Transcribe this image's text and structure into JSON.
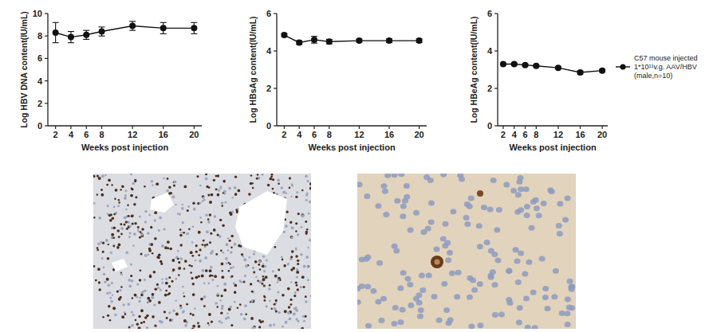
{
  "chart_data": [
    {
      "type": "line",
      "x_label": "Weeks post injection",
      "y_label": "Log HBV DNA content(IU/mL)",
      "x": [
        2,
        4,
        6,
        8,
        12,
        16,
        20
      ],
      "xlim": [
        1,
        21
      ],
      "xticks": [
        2,
        4,
        6,
        8,
        12,
        16,
        20
      ],
      "ylim": [
        0,
        10
      ],
      "yticks": [
        0,
        2,
        4,
        6,
        8,
        10
      ],
      "grid": false,
      "series": [
        {
          "color": "#111111",
          "marker": "circle",
          "line_style": "solid",
          "values": [
            8.3,
            7.9,
            8.1,
            8.4,
            8.9,
            8.7,
            8.7
          ],
          "errors": [
            0.9,
            0.5,
            0.4,
            0.4,
            0.4,
            0.5,
            0.5
          ]
        }
      ]
    },
    {
      "type": "line",
      "x_label": "Weeks post injection",
      "y_label": "Log HBsAg content(IU/mL)",
      "x": [
        2,
        4,
        6,
        8,
        12,
        16,
        20
      ],
      "xlim": [
        1,
        21
      ],
      "xticks": [
        2,
        4,
        6,
        8,
        12,
        16,
        20
      ],
      "ylim": [
        0,
        6
      ],
      "yticks": [
        0,
        2,
        4,
        6
      ],
      "grid": false,
      "series": [
        {
          "color": "#111111",
          "marker": "circle",
          "line_style": "solid",
          "values": [
            4.85,
            4.45,
            4.6,
            4.5,
            4.55,
            4.55,
            4.55
          ],
          "errors": [
            0.08,
            0.1,
            0.18,
            0.12,
            0.08,
            0.1,
            0.1
          ]
        }
      ]
    },
    {
      "type": "line",
      "x_label": "Weeks post injection",
      "y_label": "Log HBeAg content(IU/mL)",
      "x": [
        2,
        4,
        6,
        8,
        12,
        16,
        20
      ],
      "xlim": [
        1,
        21
      ],
      "xticks": [
        2,
        4,
        6,
        8,
        12,
        16,
        20
      ],
      "ylim": [
        0,
        6
      ],
      "yticks": [
        0,
        2,
        4,
        6
      ],
      "grid": false,
      "legend": "right",
      "series": [
        {
          "name": "C57 mouse injected 1*10¹¹v.g. AAV/HBV (male,n=10)",
          "color": "#111111",
          "marker": "circle",
          "line_style": "solid",
          "values": [
            3.3,
            3.3,
            3.25,
            3.2,
            3.1,
            2.85,
            2.95
          ],
          "errors": [
            0.05,
            0.05,
            0.05,
            0.05,
            0.05,
            0.08,
            0.06
          ]
        }
      ]
    }
  ]
}
